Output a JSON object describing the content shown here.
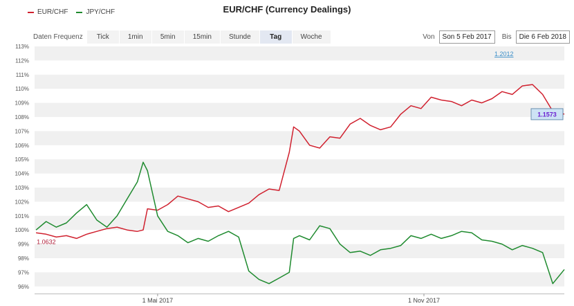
{
  "title": "EUR/CHF (Currency Dealings)",
  "legend": [
    {
      "label": "EUR/CHF",
      "color": "#d0202e"
    },
    {
      "label": "JPY/CHF",
      "color": "#1e8a2e"
    }
  ],
  "frequency": {
    "label": "Daten Frequenz",
    "options": [
      "Tick",
      "1min",
      "5min",
      "15min",
      "Stunde",
      "Tag",
      "Woche"
    ],
    "active": "Tag"
  },
  "date_range": {
    "from_label": "Von",
    "from_value": "Son 5 Feb 2017",
    "to_label": "Bis",
    "to_value": "Die 6 Feb 2018"
  },
  "chart_data": {
    "type": "line",
    "ylim": [
      95.5,
      113
    ],
    "y_ticks": [
      "113%",
      "112%",
      "111%",
      "110%",
      "109%",
      "108%",
      "107%",
      "106%",
      "105%",
      "104%",
      "103%",
      "102%",
      "101%",
      "100%",
      "99%",
      "98%",
      "97%",
      "96%"
    ],
    "y_tick_values": [
      113,
      112,
      111,
      110,
      109,
      108,
      107,
      106,
      105,
      104,
      103,
      102,
      101,
      100,
      99,
      98,
      97,
      96
    ],
    "x_tick_labels": [
      {
        "label": "1 Mai 2017",
        "date": "2017-05-01"
      },
      {
        "label": "1 Nov 2017",
        "date": "2017-11-01"
      }
    ],
    "x_start": "2017-02-05",
    "x_end": "2018-02-06",
    "grid": "alternating horizontal bands",
    "annotations": [
      {
        "text": "1.0632",
        "series": "EUR/CHF",
        "color": "#b0203a"
      },
      {
        "text": "1.2012",
        "color": "#3a8ec8"
      },
      {
        "text": "1.1573",
        "series": "EUR/CHF",
        "color": "#6a1fd0"
      }
    ],
    "series": [
      {
        "name": "EUR/CHF",
        "color": "#d0202e",
        "points": [
          [
            "2017-02-06",
            99.8
          ],
          [
            "2017-02-13",
            99.7
          ],
          [
            "2017-02-20",
            99.5
          ],
          [
            "2017-02-27",
            99.6
          ],
          [
            "2017-03-06",
            99.4
          ],
          [
            "2017-03-13",
            99.7
          ],
          [
            "2017-03-20",
            99.9
          ],
          [
            "2017-03-27",
            100.1
          ],
          [
            "2017-04-03",
            100.2
          ],
          [
            "2017-04-10",
            100.0
          ],
          [
            "2017-04-17",
            99.9
          ],
          [
            "2017-04-21",
            100.0
          ],
          [
            "2017-04-24",
            101.5
          ],
          [
            "2017-05-01",
            101.4
          ],
          [
            "2017-05-08",
            101.8
          ],
          [
            "2017-05-15",
            102.4
          ],
          [
            "2017-05-22",
            102.2
          ],
          [
            "2017-05-29",
            102.0
          ],
          [
            "2017-06-05",
            101.6
          ],
          [
            "2017-06-12",
            101.7
          ],
          [
            "2017-06-19",
            101.3
          ],
          [
            "2017-06-26",
            101.6
          ],
          [
            "2017-07-03",
            101.9
          ],
          [
            "2017-07-10",
            102.5
          ],
          [
            "2017-07-17",
            102.9
          ],
          [
            "2017-07-24",
            102.8
          ],
          [
            "2017-07-31",
            105.5
          ],
          [
            "2017-08-03",
            107.3
          ],
          [
            "2017-08-07",
            107.0
          ],
          [
            "2017-08-14",
            106.0
          ],
          [
            "2017-08-21",
            105.8
          ],
          [
            "2017-08-28",
            106.6
          ],
          [
            "2017-09-04",
            106.5
          ],
          [
            "2017-09-11",
            107.5
          ],
          [
            "2017-09-18",
            107.9
          ],
          [
            "2017-09-25",
            107.4
          ],
          [
            "2017-10-02",
            107.1
          ],
          [
            "2017-10-09",
            107.3
          ],
          [
            "2017-10-16",
            108.2
          ],
          [
            "2017-10-23",
            108.8
          ],
          [
            "2017-10-30",
            108.6
          ],
          [
            "2017-11-06",
            109.4
          ],
          [
            "2017-11-13",
            109.2
          ],
          [
            "2017-11-20",
            109.1
          ],
          [
            "2017-11-27",
            108.8
          ],
          [
            "2017-12-04",
            109.2
          ],
          [
            "2017-12-11",
            109.0
          ],
          [
            "2017-12-18",
            109.3
          ],
          [
            "2017-12-25",
            109.8
          ],
          [
            "2018-01-01",
            109.6
          ],
          [
            "2018-01-08",
            110.2
          ],
          [
            "2018-01-15",
            110.3
          ],
          [
            "2018-01-22",
            109.6
          ],
          [
            "2018-01-29",
            108.4
          ],
          [
            "2018-02-06",
            108.2
          ]
        ]
      },
      {
        "name": "JPY/CHF",
        "color": "#1e8a2e",
        "points": [
          [
            "2017-02-06",
            100.0
          ],
          [
            "2017-02-13",
            100.6
          ],
          [
            "2017-02-20",
            100.2
          ],
          [
            "2017-02-27",
            100.5
          ],
          [
            "2017-03-06",
            101.2
          ],
          [
            "2017-03-13",
            101.8
          ],
          [
            "2017-03-20",
            100.7
          ],
          [
            "2017-03-27",
            100.2
          ],
          [
            "2017-04-03",
            101.0
          ],
          [
            "2017-04-10",
            102.2
          ],
          [
            "2017-04-17",
            103.4
          ],
          [
            "2017-04-21",
            104.8
          ],
          [
            "2017-04-24",
            104.2
          ],
          [
            "2017-05-01",
            101.0
          ],
          [
            "2017-05-08",
            99.9
          ],
          [
            "2017-05-15",
            99.6
          ],
          [
            "2017-05-22",
            99.1
          ],
          [
            "2017-05-29",
            99.4
          ],
          [
            "2017-06-05",
            99.2
          ],
          [
            "2017-06-12",
            99.6
          ],
          [
            "2017-06-19",
            99.9
          ],
          [
            "2017-06-26",
            99.5
          ],
          [
            "2017-07-03",
            97.1
          ],
          [
            "2017-07-10",
            96.5
          ],
          [
            "2017-07-17",
            96.2
          ],
          [
            "2017-07-24",
            96.6
          ],
          [
            "2017-07-31",
            97.0
          ],
          [
            "2017-08-03",
            99.4
          ],
          [
            "2017-08-07",
            99.6
          ],
          [
            "2017-08-14",
            99.3
          ],
          [
            "2017-08-21",
            100.3
          ],
          [
            "2017-08-28",
            100.1
          ],
          [
            "2017-09-04",
            99.0
          ],
          [
            "2017-09-11",
            98.4
          ],
          [
            "2017-09-18",
            98.5
          ],
          [
            "2017-09-25",
            98.2
          ],
          [
            "2017-10-02",
            98.6
          ],
          [
            "2017-10-09",
            98.7
          ],
          [
            "2017-10-16",
            98.9
          ],
          [
            "2017-10-23",
            99.6
          ],
          [
            "2017-10-30",
            99.4
          ],
          [
            "2017-11-06",
            99.7
          ],
          [
            "2017-11-13",
            99.4
          ],
          [
            "2017-11-20",
            99.6
          ],
          [
            "2017-11-27",
            99.9
          ],
          [
            "2017-12-04",
            99.8
          ],
          [
            "2017-12-11",
            99.3
          ],
          [
            "2017-12-18",
            99.2
          ],
          [
            "2017-12-25",
            99.0
          ],
          [
            "2018-01-01",
            98.6
          ],
          [
            "2018-01-08",
            98.9
          ],
          [
            "2018-01-15",
            98.7
          ],
          [
            "2018-01-22",
            98.4
          ],
          [
            "2018-01-29",
            96.2
          ],
          [
            "2018-02-06",
            97.2
          ]
        ]
      }
    ]
  }
}
